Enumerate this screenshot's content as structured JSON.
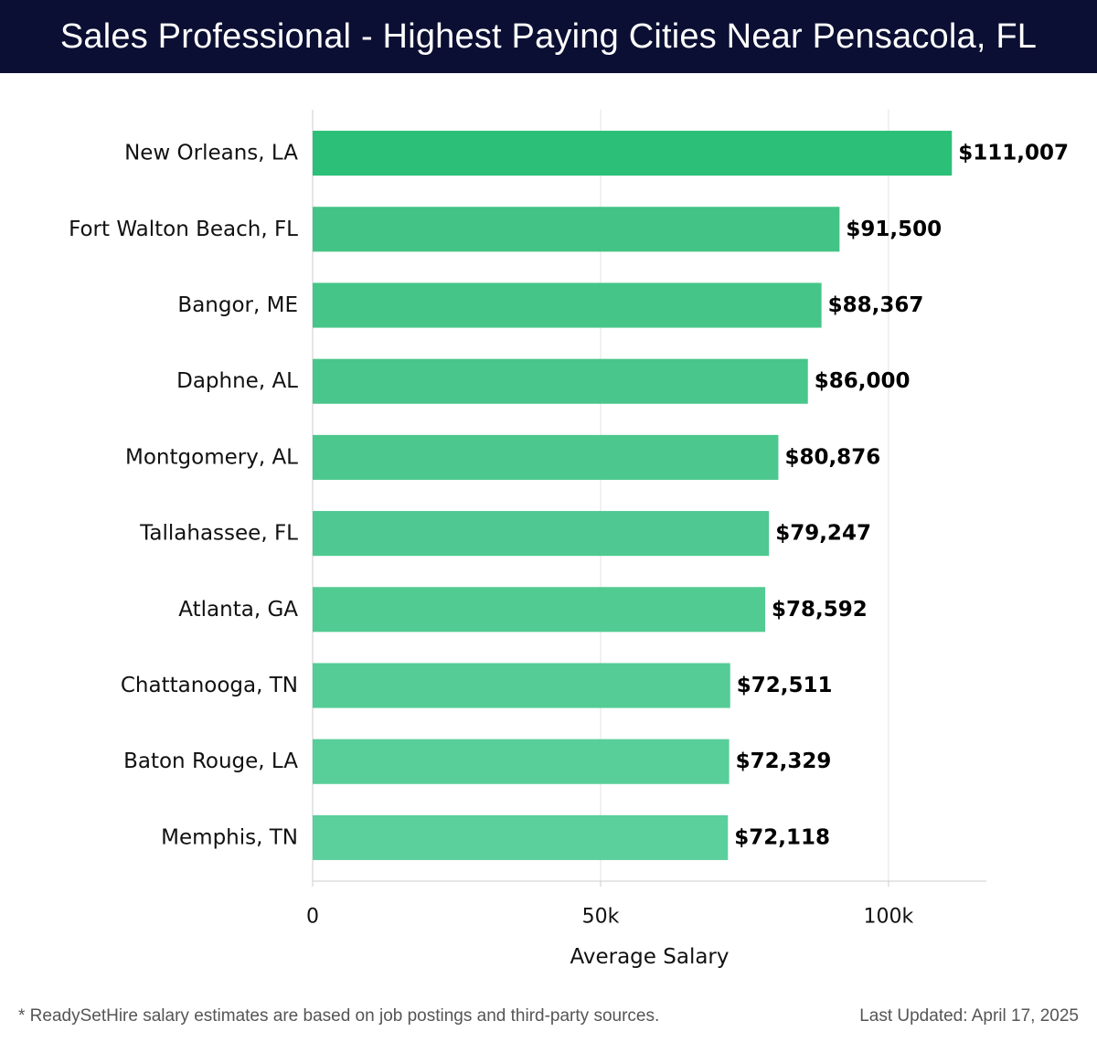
{
  "header": {
    "title": "Sales Professional - Highest Paying Cities Near Pensacola, FL"
  },
  "footer": {
    "note": "* ReadySetHire salary estimates are based on job postings and third-party sources.",
    "updated": "Last Updated: April 17, 2025"
  },
  "chart_data": {
    "type": "bar",
    "orientation": "horizontal",
    "title": "Sales Professional - Highest Paying Cities Near Pensacola, FL",
    "xlabel": "Average Salary",
    "ylabel": "",
    "xlim": [
      0,
      117000
    ],
    "x_ticks": [
      0,
      50000,
      100000
    ],
    "x_tick_labels": [
      "0",
      "50k",
      "100k"
    ],
    "grid": true,
    "categories": [
      "New Orleans, LA",
      "Fort Walton Beach, FL",
      "Bangor, ME",
      "Daphne, AL",
      "Montgomery, AL",
      "Tallahassee, FL",
      "Atlanta, GA",
      "Chattanooga, TN",
      "Baton Rouge, LA",
      "Memphis, TN"
    ],
    "values": [
      111007,
      91500,
      88367,
      86000,
      80876,
      79247,
      78592,
      72511,
      72329,
      72118
    ],
    "value_labels": [
      "$111,007",
      "$91,500",
      "$88,367",
      "$86,000",
      "$80,876",
      "$79,247",
      "$78,592",
      "$72,511",
      "$72,329",
      "$72,118"
    ],
    "colors": {
      "top_bar": "#2bbf77",
      "bar_start": "#43c385",
      "bar_end": "#5bcf9c",
      "grid": "#e3e3e3",
      "axis": "#cccccc"
    }
  }
}
